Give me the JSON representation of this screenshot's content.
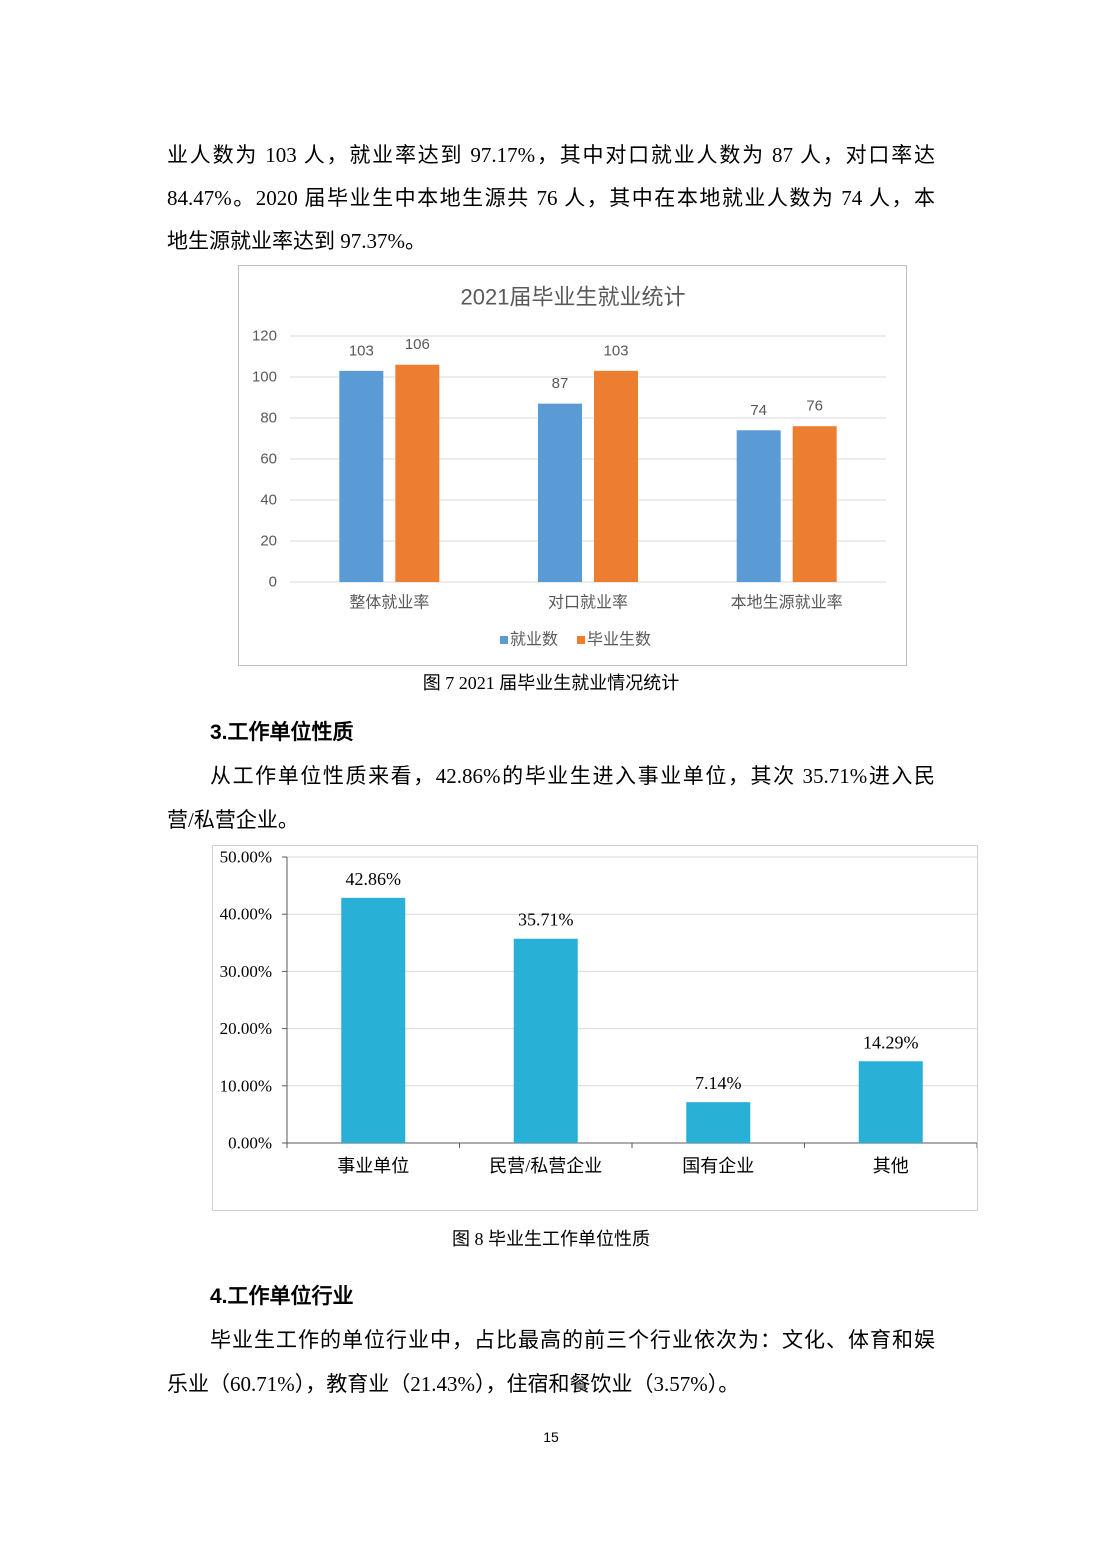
{
  "intro": {
    "lines": [
      "业人数为 103 人，就业率达到 97.17%，其中对口就业人数为 87 人，对口率达",
      "84.47%。2020 届毕业生中本地生源共 76 人，其中在本地就业人数为 74 人，本",
      "地生源就业率达到 97.37%。"
    ]
  },
  "figure7": {
    "caption": "图 7 2021 届毕业生就业情况统计"
  },
  "section3": {
    "heading": "3.工作单位性质",
    "lines": [
      "从工作单位性质来看，42.86%的毕业生进入事业单位，其次 35.71%进入民",
      "营/私营企业。"
    ]
  },
  "figure8": {
    "caption": "图 8 毕业生工作单位性质"
  },
  "section4": {
    "heading": "4.工作单位行业",
    "lines": [
      "毕业生工作的单位行业中，占比最高的前三个行业依次为：文化、体育和娱",
      "乐业（60.71%），教育业（21.43%），住宿和餐饮业（3.57%）。"
    ]
  },
  "page": {
    "number": "15"
  },
  "chart_data": [
    {
      "type": "bar",
      "title": "2021届毕业生就业统计",
      "categories": [
        "整体就业率",
        "对口就业率",
        "本地生源就业率"
      ],
      "series": [
        {
          "name": "就业数",
          "values": [
            103,
            87,
            74
          ],
          "color": "#5b9bd5"
        },
        {
          "name": "毕业生数",
          "values": [
            106,
            103,
            76
          ],
          "color": "#ed7d31"
        }
      ],
      "ylim": [
        0,
        120
      ],
      "yticks": [
        0,
        20,
        40,
        60,
        80,
        100,
        120
      ],
      "grid": true,
      "legend": "bottom"
    },
    {
      "type": "bar",
      "categories": [
        "事业单位",
        "民营/私营企业",
        "国有企业",
        "其他"
      ],
      "values": [
        42.86,
        35.71,
        7.14,
        14.29
      ],
      "value_labels": [
        "42.86%",
        "35.71%",
        "7.14%",
        "14.29%"
      ],
      "color": "#29b0d6",
      "ylim": [
        0,
        50
      ],
      "yticks": [
        0,
        10,
        20,
        30,
        40,
        50
      ],
      "ytick_labels": [
        "0.00%",
        "10.00%",
        "20.00%",
        "30.00%",
        "40.00%",
        "50.00%"
      ],
      "grid": true,
      "legend": "none"
    }
  ]
}
